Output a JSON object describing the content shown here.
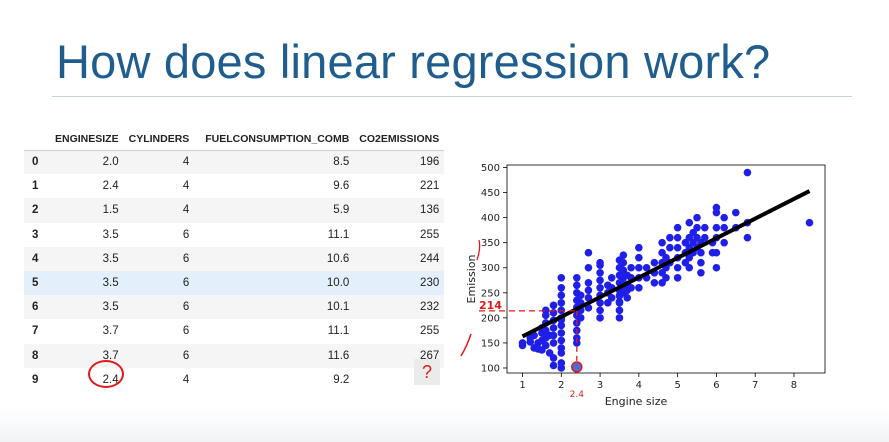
{
  "slide": {
    "title": "How does linear regression work?"
  },
  "table": {
    "columns": [
      "",
      "ENGINESIZE",
      "CYLINDERS",
      "FUELCONSUMPTION_COMB",
      "CO2EMISSIONS"
    ],
    "rows": [
      [
        "0",
        "2.0",
        "4",
        "8.5",
        "196"
      ],
      [
        "1",
        "2.4",
        "4",
        "9.6",
        "221"
      ],
      [
        "2",
        "1.5",
        "4",
        "5.9",
        "136"
      ],
      [
        "3",
        "3.5",
        "6",
        "11.1",
        "255"
      ],
      [
        "4",
        "3.5",
        "6",
        "10.6",
        "244"
      ],
      [
        "5",
        "3.5",
        "6",
        "10.0",
        "230"
      ],
      [
        "6",
        "3.5",
        "6",
        "10.1",
        "232"
      ],
      [
        "7",
        "3.7",
        "6",
        "11.1",
        "255"
      ],
      [
        "8",
        "3.7",
        "6",
        "11.6",
        "267"
      ],
      [
        "9",
        "2.4",
        "4",
        "9.2",
        "?"
      ]
    ]
  },
  "chart_data": {
    "type": "scatter",
    "xlabel": "Engine size",
    "ylabel": "Emission",
    "xlim": [
      0.6,
      8.8
    ],
    "ylim": [
      90,
      505
    ],
    "xticks": [
      1,
      2,
      3,
      4,
      5,
      6,
      7,
      8
    ],
    "yticks": [
      100,
      150,
      200,
      250,
      300,
      350,
      400,
      450,
      500
    ],
    "grid": false,
    "point_color": "#1f1fe8",
    "line_color": "#000000",
    "regression_line": {
      "x": [
        1.0,
        8.4
      ],
      "y": [
        163,
        453
      ]
    },
    "points": [
      [
        1.0,
        150
      ],
      [
        1.0,
        145
      ],
      [
        1.2,
        160
      ],
      [
        1.2,
        152
      ],
      [
        1.3,
        140
      ],
      [
        1.3,
        165
      ],
      [
        1.4,
        150
      ],
      [
        1.4,
        138
      ],
      [
        1.5,
        136
      ],
      [
        1.5,
        155
      ],
      [
        1.5,
        170
      ],
      [
        1.5,
        180
      ],
      [
        1.6,
        145
      ],
      [
        1.6,
        160
      ],
      [
        1.6,
        175
      ],
      [
        1.6,
        190
      ],
      [
        1.6,
        205
      ],
      [
        1.6,
        215
      ],
      [
        1.7,
        130
      ],
      [
        1.7,
        165
      ],
      [
        1.8,
        150
      ],
      [
        1.8,
        165
      ],
      [
        1.8,
        180
      ],
      [
        1.8,
        195
      ],
      [
        1.8,
        210
      ],
      [
        1.8,
        225
      ],
      [
        1.8,
        120
      ],
      [
        1.8,
        105
      ],
      [
        2.0,
        196
      ],
      [
        2.0,
        155
      ],
      [
        2.0,
        170
      ],
      [
        2.0,
        185
      ],
      [
        2.0,
        200
      ],
      [
        2.0,
        215
      ],
      [
        2.0,
        230
      ],
      [
        2.0,
        245
      ],
      [
        2.0,
        260
      ],
      [
        2.0,
        280
      ],
      [
        2.0,
        140
      ],
      [
        2.0,
        130
      ],
      [
        2.0,
        110
      ],
      [
        2.0,
        100
      ],
      [
        2.4,
        221
      ],
      [
        2.4,
        175
      ],
      [
        2.4,
        190
      ],
      [
        2.4,
        205
      ],
      [
        2.4,
        235
      ],
      [
        2.4,
        250
      ],
      [
        2.4,
        265
      ],
      [
        2.4,
        280
      ],
      [
        2.4,
        160
      ],
      [
        2.4,
        150
      ],
      [
        2.5,
        200
      ],
      [
        2.5,
        215
      ],
      [
        2.5,
        230
      ],
      [
        2.5,
        245
      ],
      [
        2.7,
        220
      ],
      [
        2.7,
        240
      ],
      [
        2.7,
        255
      ],
      [
        2.7,
        270
      ],
      [
        2.7,
        300
      ],
      [
        2.7,
        330
      ],
      [
        3.0,
        200
      ],
      [
        3.0,
        215
      ],
      [
        3.0,
        230
      ],
      [
        3.0,
        245
      ],
      [
        3.0,
        260
      ],
      [
        3.0,
        275
      ],
      [
        3.0,
        290
      ],
      [
        3.0,
        305
      ],
      [
        3.0,
        310
      ],
      [
        3.2,
        230
      ],
      [
        3.2,
        250
      ],
      [
        3.2,
        265
      ],
      [
        3.3,
        240
      ],
      [
        3.3,
        260
      ],
      [
        3.3,
        280
      ],
      [
        3.5,
        255
      ],
      [
        3.5,
        244
      ],
      [
        3.5,
        230
      ],
      [
        3.5,
        232
      ],
      [
        3.5,
        215
      ],
      [
        3.5,
        270
      ],
      [
        3.5,
        285
      ],
      [
        3.5,
        300
      ],
      [
        3.5,
        315
      ],
      [
        3.5,
        200
      ],
      [
        3.6,
        250
      ],
      [
        3.6,
        265
      ],
      [
        3.6,
        280
      ],
      [
        3.6,
        295
      ],
      [
        3.6,
        310
      ],
      [
        3.6,
        325
      ],
      [
        3.7,
        255
      ],
      [
        3.7,
        267
      ],
      [
        3.7,
        240
      ],
      [
        3.7,
        285
      ],
      [
        3.8,
        260
      ],
      [
        3.8,
        280
      ],
      [
        3.8,
        300
      ],
      [
        4.0,
        260
      ],
      [
        4.0,
        280
      ],
      [
        4.0,
        300
      ],
      [
        4.0,
        320
      ],
      [
        4.0,
        340
      ],
      [
        4.2,
        280
      ],
      [
        4.2,
        300
      ],
      [
        4.4,
        270
      ],
      [
        4.4,
        290
      ],
      [
        4.4,
        310
      ],
      [
        4.6,
        270
      ],
      [
        4.6,
        290
      ],
      [
        4.6,
        310
      ],
      [
        4.6,
        330
      ],
      [
        4.6,
        350
      ],
      [
        4.7,
        280
      ],
      [
        4.7,
        300
      ],
      [
        4.7,
        320
      ],
      [
        4.8,
        310
      ],
      [
        4.8,
        340
      ],
      [
        4.8,
        360
      ],
      [
        5.0,
        280
      ],
      [
        5.0,
        300
      ],
      [
        5.0,
        320
      ],
      [
        5.0,
        340
      ],
      [
        5.0,
        360
      ],
      [
        5.0,
        380
      ],
      [
        5.2,
        310
      ],
      [
        5.2,
        330
      ],
      [
        5.2,
        350
      ],
      [
        5.3,
        300
      ],
      [
        5.3,
        320
      ],
      [
        5.3,
        340
      ],
      [
        5.3,
        360
      ],
      [
        5.3,
        390
      ],
      [
        5.4,
        330
      ],
      [
        5.4,
        350
      ],
      [
        5.4,
        370
      ],
      [
        5.5,
        340
      ],
      [
        5.5,
        360
      ],
      [
        5.5,
        380
      ],
      [
        5.5,
        400
      ],
      [
        5.6,
        290
      ],
      [
        5.6,
        310
      ],
      [
        5.6,
        330
      ],
      [
        5.6,
        350
      ],
      [
        5.7,
        360
      ],
      [
        5.7,
        380
      ],
      [
        5.9,
        330
      ],
      [
        5.9,
        350
      ],
      [
        6.0,
        300
      ],
      [
        6.0,
        330
      ],
      [
        6.0,
        360
      ],
      [
        6.0,
        380
      ],
      [
        6.0,
        410
      ],
      [
        6.0,
        420
      ],
      [
        6.2,
        350
      ],
      [
        6.2,
        380
      ],
      [
        6.2,
        400
      ],
      [
        6.5,
        380
      ],
      [
        6.5,
        410
      ],
      [
        6.8,
        360
      ],
      [
        6.8,
        390
      ],
      [
        6.8,
        490
      ],
      [
        8.4,
        390
      ]
    ],
    "annotations": {
      "highlight_x": 2.4,
      "highlight_y": 214,
      "highlight_y_label": "214",
      "highlight_x_label": "2.4"
    }
  }
}
